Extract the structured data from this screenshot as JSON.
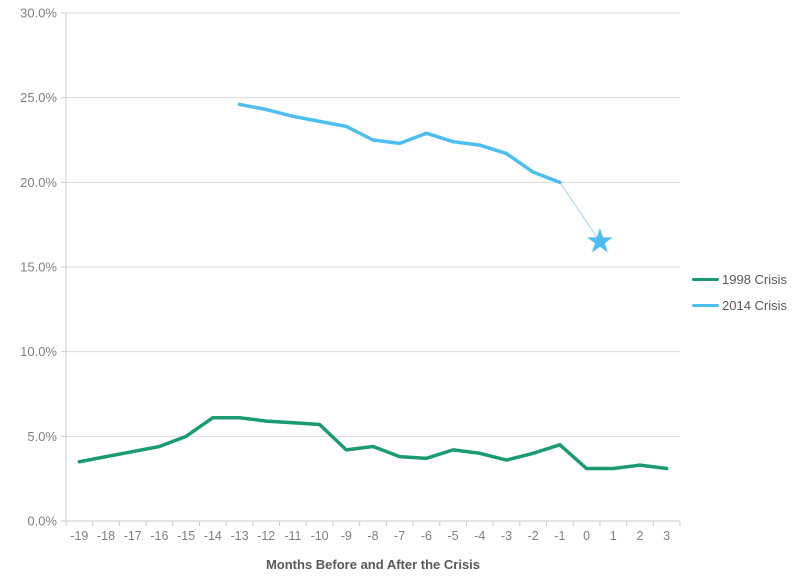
{
  "chart": {
    "x_axis_title": "Months Before and After the Crisis",
    "legend": [
      {
        "label": "1998 Crisis",
        "color": "#1A9C6E"
      },
      {
        "label": "2014 Crisis",
        "color": "#4DBEF0"
      }
    ],
    "colors": {
      "gridline": "#D9D9D9",
      "axis_line": "#C9C9C9",
      "tick_label": "#7F7F7F",
      "axis_title_text": "#595959",
      "connector": "#A5DDF7"
    }
  },
  "chart_data": {
    "type": "line",
    "title": "",
    "xlabel": "Months Before and After the Crisis",
    "ylabel": "",
    "ylim": [
      0,
      30
    ],
    "grid": true,
    "legend_position": "right",
    "x": [
      -19,
      -18,
      -17,
      -16,
      -15,
      -14,
      -13,
      -12,
      -11,
      -10,
      -9,
      -8,
      -7,
      -6,
      -5,
      -4,
      -3,
      -2,
      -1,
      0,
      1,
      2,
      3
    ],
    "x_tick_labels": [
      "-19",
      "-18",
      "-17",
      "-16",
      "-15",
      "-14",
      "-13",
      "-12",
      "-11",
      "-10",
      "-9",
      "-8",
      "-7",
      "-6",
      "-5",
      "-4",
      "-3",
      "-2",
      "-1",
      "0",
      "1",
      "2",
      "3"
    ],
    "y_tick_values": [
      30,
      25,
      20,
      15,
      10,
      5,
      0
    ],
    "y_tick_labels": [
      "30.0%",
      "25.0%",
      "20.0%",
      "15.0%",
      "10.0%",
      "5.0%",
      "0.0%"
    ],
    "series": [
      {
        "name": "1998 Crisis",
        "color": "#1A9C6E",
        "x": [
          -19,
          -18,
          -17,
          -16,
          -15,
          -14,
          -13,
          -12,
          -11,
          -10,
          -9,
          -8,
          -7,
          -6,
          -5,
          -4,
          -3,
          -2,
          -1,
          0,
          1,
          2,
          3
        ],
        "values": [
          3.5,
          3.8,
          4.1,
          4.4,
          5.0,
          6.1,
          6.1,
          5.9,
          5.8,
          5.7,
          4.2,
          4.4,
          3.8,
          3.7,
          4.2,
          4.0,
          3.6,
          4.0,
          4.5,
          3.1,
          3.1,
          3.3,
          3.1
        ]
      },
      {
        "name": "2014 Crisis",
        "color": "#4DBEF0",
        "x": [
          -13,
          -12,
          -11,
          -10,
          -9,
          -8,
          -7,
          -6,
          -5,
          -4,
          -3,
          -2,
          -1
        ],
        "values": [
          24.6,
          24.3,
          23.9,
          23.6,
          23.3,
          22.5,
          22.3,
          22.9,
          22.4,
          22.2,
          21.7,
          20.6,
          20.0
        ]
      }
    ],
    "annotation": {
      "type": "star",
      "x": 0.5,
      "y": 16.5,
      "color": "#4DBEF0",
      "connector_from": {
        "x": -1,
        "y": 20.0
      }
    }
  }
}
